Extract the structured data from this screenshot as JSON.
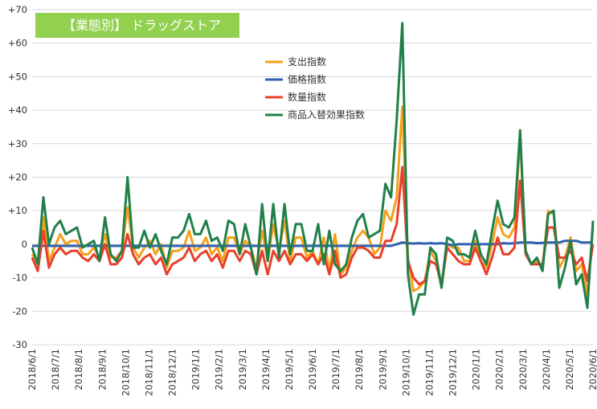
{
  "chart_data": {
    "type": "line",
    "title": "【業態別】 ドラッグストア",
    "xlabel": "",
    "ylabel": "",
    "ylim": [
      -30,
      70
    ],
    "yticks": [
      {
        "value": 70,
        "label": "+70"
      },
      {
        "value": 60,
        "label": "+60"
      },
      {
        "value": 50,
        "label": "+50"
      },
      {
        "value": 40,
        "label": "+40"
      },
      {
        "value": 30,
        "label": "+30"
      },
      {
        "value": 20,
        "label": "+20"
      },
      {
        "value": 10,
        "label": "+10"
      },
      {
        "value": 0,
        "label": "0"
      },
      {
        "value": -10,
        "label": "-10"
      },
      {
        "value": -20,
        "label": "-20"
      },
      {
        "value": -30,
        "label": "-30"
      }
    ],
    "x_labels": [
      "2018/6/1",
      "2018/7/1",
      "2018/8/1",
      "2018/9/1",
      "2018/10/1",
      "2018/11/1",
      "2018/12/1",
      "2019/1/1",
      "2019/2/1",
      "2019/3/1",
      "2019/4/1",
      "2019/5/1",
      "2019/6/1",
      "2019/7/1",
      "2019/8/1",
      "2019/9/1",
      "2019/10/1",
      "2019/11/1",
      "2019/12/1",
      "2020/1/1",
      "2020/2/1",
      "2020/3/1",
      "2020/4/1",
      "2020/5/1",
      "2020/6/1"
    ],
    "grid": "horizontal",
    "legend_position": "upper-center",
    "series": [
      {
        "name": "支出指数",
        "color": "#f5a11b",
        "values": [
          -3,
          -6,
          8,
          -5,
          -1,
          3,
          0,
          1,
          1,
          -3,
          -3,
          -1,
          -4,
          3,
          -4,
          -4,
          -2,
          11,
          -1,
          -4,
          -1,
          1,
          -3,
          0,
          -7,
          -2,
          -2,
          -1,
          4,
          -2,
          -1,
          2,
          -3,
          -1,
          -5,
          2,
          2,
          -3,
          1,
          -1,
          -7,
          4,
          -5,
          6,
          -2,
          7,
          -5,
          2,
          2,
          -4,
          -2,
          -6,
          2,
          -8,
          3,
          -9,
          -7,
          -2,
          2,
          4,
          2,
          -3,
          -1,
          10,
          7,
          14,
          41,
          -4,
          -14,
          -13,
          -11,
          -2,
          -5,
          -13,
          0,
          -1,
          -1,
          -5,
          -5,
          1,
          -5,
          -7,
          0,
          8,
          3,
          2,
          5,
          32,
          -2,
          -6,
          -5,
          -7,
          10,
          9,
          -7,
          -4,
          2,
          -8,
          -6,
          -15,
          5
        ]
      },
      {
        "name": "価格指数",
        "color": "#2e62b0",
        "values": [
          -0.5,
          -0.5,
          -0.5,
          -0.5,
          -0.5,
          -0.5,
          -0.5,
          -0.5,
          -0.5,
          -0.5,
          -0.5,
          -0.5,
          -0.5,
          -0.5,
          -0.5,
          -0.5,
          -0.5,
          -0.5,
          -0.5,
          -0.5,
          -0.5,
          -0.5,
          -0.5,
          -0.5,
          -0.5,
          -0.5,
          -0.5,
          -0.5,
          -0.5,
          -0.5,
          -0.5,
          -0.5,
          -0.5,
          -0.5,
          -0.5,
          -0.5,
          -0.5,
          -0.5,
          -0.5,
          -0.5,
          -0.5,
          -0.5,
          -0.5,
          -0.5,
          -0.5,
          -0.5,
          -0.5,
          -0.5,
          -0.5,
          -0.5,
          -0.5,
          -0.5,
          -0.5,
          -0.5,
          -0.5,
          -0.5,
          -0.5,
          -0.5,
          -0.5,
          -0.5,
          -0.5,
          -0.5,
          -0.5,
          -0.5,
          -0.5,
          0,
          0.5,
          0.3,
          0.2,
          0.3,
          0.2,
          0.3,
          0.2,
          0.3,
          0,
          -0.3,
          0,
          0,
          0,
          0,
          0,
          0,
          0,
          0,
          0.3,
          0.2,
          0.3,
          0.5,
          0.5,
          0.5,
          0.3,
          0.4,
          0.5,
          0.5,
          0.5,
          1,
          1,
          1,
          0.5,
          0.5,
          0.5
        ]
      },
      {
        "name": "数量指数",
        "color": "#e8402a",
        "values": [
          -4,
          -8,
          4,
          -7,
          -3,
          -1,
          -3,
          -2,
          -2,
          -4,
          -5,
          -3,
          -5,
          0,
          -6,
          -6,
          -4,
          3,
          -3,
          -6,
          -4,
          -3,
          -6,
          -4,
          -9,
          -6,
          -5,
          -4,
          -1,
          -5,
          -3,
          -2,
          -5,
          -3,
          -7,
          -2,
          -2,
          -5,
          -2,
          -3,
          -9,
          -2,
          -9,
          -2,
          -5,
          -2,
          -6,
          -3,
          -3,
          -5,
          -3,
          -6,
          -3,
          -9,
          -2,
          -10,
          -9,
          -4,
          -1,
          -1,
          -2,
          -4,
          -4,
          1,
          1,
          6,
          23,
          -5,
          -10,
          -12,
          -11,
          -5,
          -6,
          -12,
          -1,
          -3,
          -5,
          -6,
          -6,
          -1,
          -5,
          -9,
          -4,
          2,
          -3,
          -3,
          -1,
          19,
          -3,
          -6,
          -6,
          -6,
          5,
          5,
          -4,
          -4,
          -2,
          -6,
          -4,
          -11,
          0
        ]
      },
      {
        "name": "商品入替効果指数",
        "color": "#21804a",
        "values": [
          -1,
          -6,
          14,
          0,
          5,
          7,
          3,
          4,
          5,
          -1,
          0,
          1,
          -5,
          8,
          -3,
          -5,
          -2,
          20,
          -1,
          -1,
          4,
          -1,
          3,
          -2,
          -6,
          2,
          2,
          4,
          9,
          3,
          3,
          7,
          1,
          2,
          -2,
          7,
          6,
          -3,
          6,
          -1,
          -9,
          12,
          -5,
          12,
          -4,
          12,
          -3,
          6,
          6,
          -2,
          -2,
          6,
          -6,
          4,
          -6,
          -8,
          -6,
          2,
          7,
          9,
          2,
          3,
          4,
          18,
          14,
          37,
          66,
          -9,
          -21,
          -15,
          -15,
          -1,
          -3,
          -13,
          2,
          1,
          -3,
          -3,
          -4,
          4,
          -3,
          -6,
          4,
          13,
          6,
          5,
          8,
          34,
          -2,
          -6,
          -4,
          -8,
          9,
          10,
          -13,
          -7,
          1,
          -12,
          -9,
          -19,
          7
        ]
      }
    ]
  }
}
